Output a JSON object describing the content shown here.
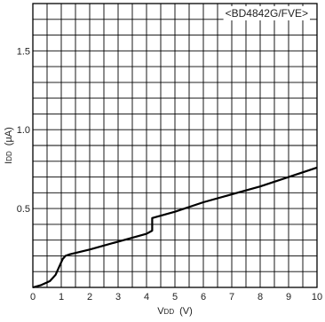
{
  "chart_data": {
    "type": "line",
    "annotation": "<BD4842G/FVE>",
    "xlabel": "VDD (V)",
    "xlabel_main": "V",
    "xlabel_sub": "DD",
    "xlabel_unit": "(V)",
    "ylabel": "IDD (µA)",
    "ylabel_main": "I",
    "ylabel_sub": "DD",
    "ylabel_unit": "(µA)",
    "xlim": [
      0,
      10
    ],
    "ylim": [
      0,
      1.8
    ],
    "x_ticks": [
      "0",
      "1",
      "2",
      "3",
      "4",
      "5",
      "6",
      "7",
      "8",
      "9",
      "10"
    ],
    "y_ticks": [
      {
        "value": 0.5,
        "label": "0.5"
      },
      {
        "value": 1.0,
        "label": "1.0"
      },
      {
        "value": 1.5,
        "label": "1.5"
      }
    ],
    "grid": true,
    "series": [
      {
        "x": [
          0,
          0.3,
          0.6,
          0.8,
          0.95,
          1.05,
          1.15,
          1.3,
          2,
          3,
          4,
          4.2,
          4.2,
          5,
          6,
          7,
          8,
          9,
          10
        ],
        "y": [
          0,
          0.015,
          0.04,
          0.08,
          0.14,
          0.18,
          0.2,
          0.21,
          0.24,
          0.29,
          0.34,
          0.36,
          0.44,
          0.48,
          0.54,
          0.59,
          0.64,
          0.7,
          0.76
        ]
      }
    ]
  }
}
